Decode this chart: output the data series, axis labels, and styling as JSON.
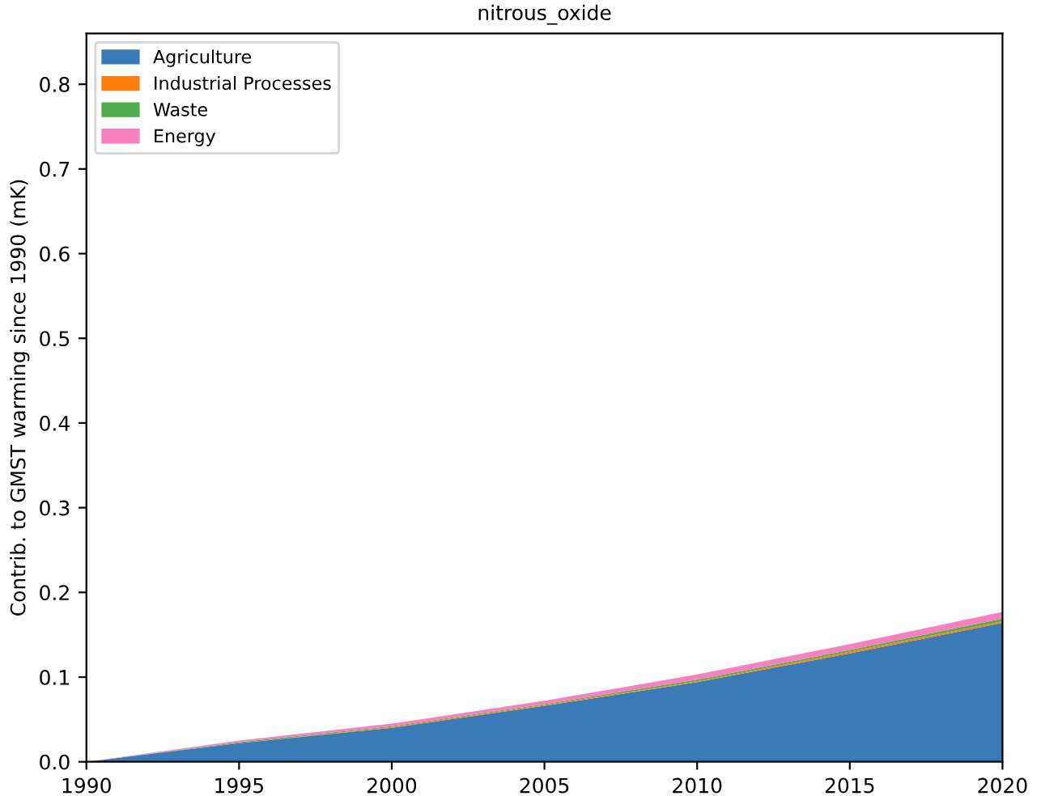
{
  "chart_data": {
    "type": "area",
    "stacked": true,
    "title": "nitrous_oxide",
    "ylabel": "Contrib. to GMST warming since 1990 (mK)",
    "x": [
      1990,
      1995,
      2000,
      2005,
      2010,
      2015,
      2020
    ],
    "series": [
      {
        "name": "Agriculture",
        "color": "#3a7ab6",
        "values": [
          0,
          0.022,
          0.04,
          0.066,
          0.094,
          0.128,
          0.164
        ]
      },
      {
        "name": "Industrial Processes",
        "color": "#ff7f0e",
        "values": [
          0,
          0,
          0.001,
          0.001,
          0.001,
          0.002,
          0.002
        ]
      },
      {
        "name": "Waste",
        "color": "#4daf4a",
        "values": [
          0,
          0.001,
          0.001,
          0.001,
          0.002,
          0.002,
          0.003
        ]
      },
      {
        "name": "Energy",
        "color": "#f781bf",
        "values": [
          0,
          0.002,
          0.003,
          0.004,
          0.006,
          0.007,
          0.008
        ]
      }
    ],
    "xlim": [
      1990,
      2020
    ],
    "xticks": [
      1990,
      1995,
      2000,
      2005,
      2010,
      2015,
      2020
    ],
    "ylim": [
      0,
      0.86
    ],
    "yticks": [
      {
        "value": 0,
        "label": "0.0"
      },
      0.1,
      0.2,
      0.3,
      0.4,
      0.5,
      0.6,
      0.7,
      0.8
    ],
    "legend": "top left",
    "grid": false
  }
}
